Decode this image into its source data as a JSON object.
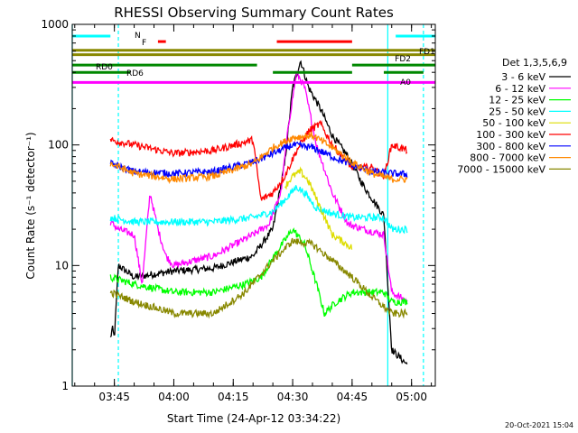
{
  "chart_data": {
    "type": "line",
    "title": "RHESSI Observing Summary Count Rates",
    "xlabel": "Start Time (24-Apr-12 03:34:22)",
    "ylabel": "Count Rate (s⁻¹ detector⁻¹)",
    "y_scale": "log",
    "xlim": [
      "03:34:22",
      "05:06"
    ],
    "ylim": [
      1,
      1000
    ],
    "x_ticks": [
      "03:45",
      "04:00",
      "04:15",
      "04:30",
      "04:45",
      "05:00"
    ],
    "y_ticks": [
      {
        "value": 1,
        "label": "1"
      },
      {
        "value": 10,
        "label": "10"
      },
      {
        "value": 100,
        "label": "100"
      },
      {
        "value": 1000,
        "label": "1000"
      }
    ],
    "legend_position": "right",
    "legend_title": "Det 1,3,5,6,9",
    "series": [
      {
        "name": "3 - 6 keV",
        "color": "#000000",
        "points": [
          [
            "03:44",
            2.5
          ],
          [
            "03:44:30",
            3
          ],
          [
            "03:45",
            2.5
          ],
          [
            "03:46",
            10
          ],
          [
            "03:50",
            8
          ],
          [
            "04:00",
            9
          ],
          [
            "04:10",
            9.5
          ],
          [
            "04:20",
            12
          ],
          [
            "04:25",
            20
          ],
          [
            "04:28",
            70
          ],
          [
            "04:30",
            300
          ],
          [
            "04:32",
            500
          ],
          [
            "04:34",
            300
          ],
          [
            "04:37",
            200
          ],
          [
            "04:40",
            120
          ],
          [
            "04:44",
            80
          ],
          [
            "04:48",
            45
          ],
          [
            "04:53",
            26
          ],
          [
            "04:55",
            2
          ],
          [
            "04:59",
            1.5
          ]
        ]
      },
      {
        "name": "6 - 12 keV",
        "color": "#ff00ff",
        "points": [
          [
            "03:44",
            23
          ],
          [
            "03:46",
            20
          ],
          [
            "03:50",
            18
          ],
          [
            "03:52",
            7
          ],
          [
            "03:54",
            40
          ],
          [
            "03:56",
            20
          ],
          [
            "03:58",
            12
          ],
          [
            "04:00",
            10
          ],
          [
            "04:10",
            12
          ],
          [
            "04:20",
            18
          ],
          [
            "04:24",
            22
          ],
          [
            "04:27",
            40
          ],
          [
            "04:29",
            150
          ],
          [
            "04:31",
            400
          ],
          [
            "04:33",
            300
          ],
          [
            "04:36",
            100
          ],
          [
            "04:40",
            40
          ],
          [
            "04:44",
            22
          ],
          [
            "04:48",
            20
          ],
          [
            "04:53",
            18
          ],
          [
            "04:55",
            6
          ],
          [
            "04:59",
            5
          ]
        ]
      },
      {
        "name": "12 - 25 keV",
        "color": "#00ff00",
        "points": [
          [
            "03:44",
            8
          ],
          [
            "03:50",
            7
          ],
          [
            "04:00",
            6
          ],
          [
            "04:10",
            6
          ],
          [
            "04:18",
            7
          ],
          [
            "04:22",
            8
          ],
          [
            "04:26",
            13
          ],
          [
            "04:30",
            20
          ],
          [
            "04:33",
            15
          ],
          [
            "04:36",
            7
          ],
          [
            "04:38",
            4
          ],
          [
            "04:41",
            5
          ],
          [
            "04:45",
            6
          ],
          [
            "04:53",
            6
          ],
          [
            "04:55",
            5
          ],
          [
            "04:59",
            5
          ]
        ]
      },
      {
        "name": "25 - 50 keV",
        "color": "#00ffff",
        "points": [
          [
            "03:44",
            25
          ],
          [
            "03:50",
            23
          ],
          [
            "04:00",
            23
          ],
          [
            "04:10",
            23
          ],
          [
            "04:20",
            25
          ],
          [
            "04:25",
            28
          ],
          [
            "04:28",
            35
          ],
          [
            "04:31",
            45
          ],
          [
            "04:33",
            40
          ],
          [
            "04:36",
            30
          ],
          [
            "04:40",
            27
          ],
          [
            "04:45",
            25
          ],
          [
            "04:53",
            25
          ],
          [
            "04:55",
            20
          ],
          [
            "04:59",
            20
          ]
        ]
      },
      {
        "name": "50 - 100 keV",
        "color": "#dddd00",
        "points": [
          [
            "04:28",
            45
          ],
          [
            "04:30",
            55
          ],
          [
            "04:32",
            60
          ],
          [
            "04:34",
            50
          ],
          [
            "04:37",
            30
          ],
          [
            "04:40",
            18
          ],
          [
            "04:45",
            14
          ]
        ]
      },
      {
        "name": "100 - 300 keV",
        "color": "#ff0000",
        "points": [
          [
            "03:44",
            110
          ],
          [
            "03:50",
            100
          ],
          [
            "04:00",
            85
          ],
          [
            "04:10",
            90
          ],
          [
            "04:20",
            110
          ],
          [
            "04:22",
            35
          ],
          [
            "04:25",
            40
          ],
          [
            "04:28",
            55
          ],
          [
            "04:31",
            90
          ],
          [
            "04:34",
            130
          ],
          [
            "04:37",
            150
          ],
          [
            "04:40",
            100
          ],
          [
            "04:45",
            65
          ],
          [
            "04:50",
            65
          ],
          [
            "04:53",
            55
          ],
          [
            "04:55",
            100
          ],
          [
            "04:59",
            90
          ]
        ]
      },
      {
        "name": "300 - 800 keV",
        "color": "#0000ff",
        "points": [
          [
            "03:44",
            70
          ],
          [
            "03:50",
            60
          ],
          [
            "04:00",
            58
          ],
          [
            "04:10",
            60
          ],
          [
            "04:20",
            72
          ],
          [
            "04:25",
            85
          ],
          [
            "04:30",
            100
          ],
          [
            "04:35",
            95
          ],
          [
            "04:40",
            80
          ],
          [
            "04:45",
            68
          ],
          [
            "04:50",
            60
          ],
          [
            "04:55",
            58
          ],
          [
            "04:59",
            57
          ]
        ]
      },
      {
        "name": "800 - 7000 keV",
        "color": "#ff8800",
        "points": [
          [
            "03:44",
            70
          ],
          [
            "03:50",
            58
          ],
          [
            "04:00",
            52
          ],
          [
            "04:10",
            55
          ],
          [
            "04:20",
            70
          ],
          [
            "04:25",
            95
          ],
          [
            "04:30",
            115
          ],
          [
            "04:35",
            120
          ],
          [
            "04:40",
            95
          ],
          [
            "04:45",
            72
          ],
          [
            "04:50",
            58
          ],
          [
            "04:55",
            52
          ],
          [
            "04:59",
            52
          ]
        ]
      },
      {
        "name": "7000 - 15000 keV",
        "color": "#888800",
        "points": [
          [
            "03:44",
            6
          ],
          [
            "03:50",
            5
          ],
          [
            "03:55",
            4.5
          ],
          [
            "04:00",
            4
          ],
          [
            "04:10",
            4
          ],
          [
            "04:18",
            6
          ],
          [
            "04:25",
            11
          ],
          [
            "04:30",
            16
          ],
          [
            "04:35",
            15
          ],
          [
            "04:40",
            11
          ],
          [
            "04:45",
            8
          ],
          [
            "04:50",
            5.5
          ],
          [
            "04:55",
            4
          ],
          [
            "04:59",
            4
          ]
        ]
      }
    ],
    "flag_bars": [
      {
        "label": "N",
        "color": "#00ffff",
        "y": 800,
        "segments": [
          [
            "03:34:22",
            "03:44"
          ],
          [
            "04:56",
            "05:06"
          ]
        ]
      },
      {
        "label": "F",
        "color": "#ff0000",
        "y": 720,
        "segments": [
          [
            "03:56",
            "03:58"
          ],
          [
            "04:26",
            "04:45"
          ]
        ]
      },
      {
        "label": "FD1",
        "color": "#888800",
        "y": 610,
        "segments": [
          [
            "03:34:22",
            "05:06"
          ]
        ]
      },
      {
        "label": "FD2",
        "color": "#888800",
        "y": 560,
        "segments": [
          [
            "03:34:22",
            "05:06"
          ]
        ]
      },
      {
        "label": "RD0",
        "color": "#008800",
        "y": 460,
        "segments": [
          [
            "03:34:22",
            "04:21"
          ],
          [
            "04:45",
            "05:06"
          ]
        ]
      },
      {
        "label": "RD6",
        "color": "#008800",
        "y": 400,
        "segments": [
          [
            "03:34:22",
            "03:49"
          ],
          [
            "04:25",
            "04:45"
          ],
          [
            "04:53",
            "05:03"
          ]
        ]
      },
      {
        "label": "A0",
        "color": "#ff00ff",
        "y": 330,
        "segments": [
          [
            "03:34:22",
            "05:06"
          ]
        ]
      }
    ],
    "vertical_lines": [
      {
        "x": "03:34:22",
        "color": "#00ffff",
        "style": "solid"
      },
      {
        "x": "03:46",
        "color": "#00ffff",
        "style": "dashed"
      },
      {
        "x": "04:54",
        "color": "#00ffff",
        "style": "solid"
      },
      {
        "x": "05:03",
        "color": "#00ffff",
        "style": "dashed"
      }
    ]
  },
  "footer": {
    "timestamp": "20-Oct-2021 15:04"
  }
}
